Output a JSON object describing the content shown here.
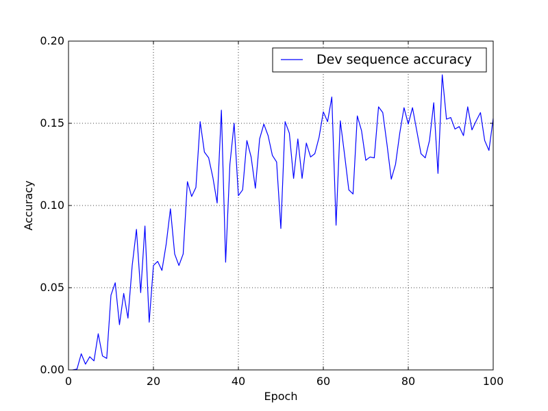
{
  "chart_data": {
    "type": "line",
    "xlabel": "Epoch",
    "ylabel": "Accuracy",
    "xlim": [
      0,
      100
    ],
    "ylim": [
      0.0,
      0.2
    ],
    "xticks": [
      "0",
      "20",
      "40",
      "60",
      "80",
      "100"
    ],
    "yticks": [
      "0.00",
      "0.05",
      "0.10",
      "0.15",
      "0.20"
    ],
    "grid": true,
    "legend_position": "top-right",
    "series": [
      {
        "name": "Dev sequence accuracy",
        "color": "#0000ff",
        "x": [
          1,
          2,
          3,
          4,
          5,
          6,
          7,
          8,
          9,
          10,
          11,
          12,
          13,
          14,
          15,
          16,
          17,
          18,
          19,
          20,
          21,
          22,
          23,
          24,
          25,
          26,
          27,
          28,
          29,
          30,
          31,
          32,
          33,
          34,
          35,
          36,
          37,
          38,
          39,
          40,
          41,
          42,
          43,
          44,
          45,
          46,
          47,
          48,
          49,
          50,
          51,
          52,
          53,
          54,
          55,
          56,
          57,
          58,
          59,
          60,
          61,
          62,
          63,
          64,
          65,
          66,
          67,
          68,
          69,
          70,
          71,
          72,
          73,
          74,
          75,
          76,
          77,
          78,
          79,
          80,
          81,
          82,
          83,
          84,
          85,
          86,
          87,
          88,
          89,
          90,
          91,
          92,
          93,
          94,
          95,
          96,
          97,
          98,
          99,
          100
        ],
        "y": [
          0.0,
          0.0005,
          0.0098,
          0.0035,
          0.008,
          0.0055,
          0.022,
          0.0085,
          0.007,
          0.0455,
          0.053,
          0.0275,
          0.0465,
          0.0315,
          0.0635,
          0.0855,
          0.047,
          0.0875,
          0.029,
          0.0635,
          0.066,
          0.0605,
          0.0765,
          0.098,
          0.0705,
          0.0635,
          0.0705,
          0.1145,
          0.1055,
          0.111,
          0.151,
          0.1325,
          0.129,
          0.117,
          0.1015,
          0.158,
          0.0655,
          0.125,
          0.15,
          0.106,
          0.1095,
          0.1395,
          0.1295,
          0.1105,
          0.1405,
          0.1495,
          0.1425,
          0.1305,
          0.1265,
          0.086,
          0.151,
          0.144,
          0.1165,
          0.1405,
          0.1165,
          0.138,
          0.1295,
          0.1315,
          0.1415,
          0.157,
          0.151,
          0.166,
          0.088,
          0.1515,
          0.131,
          0.1095,
          0.107,
          0.1545,
          0.1455,
          0.1275,
          0.1295,
          0.129,
          0.16,
          0.1565,
          0.137,
          0.116,
          0.125,
          0.144,
          0.1595,
          0.1495,
          0.1595,
          0.1455,
          0.1315,
          0.129,
          0.1395,
          0.1625,
          0.1195,
          0.1795,
          0.1525,
          0.1535,
          0.1465,
          0.148,
          0.1425,
          0.16,
          0.146,
          0.1515,
          0.1565,
          0.1395,
          0.1335,
          0.153
        ]
      }
    ]
  }
}
